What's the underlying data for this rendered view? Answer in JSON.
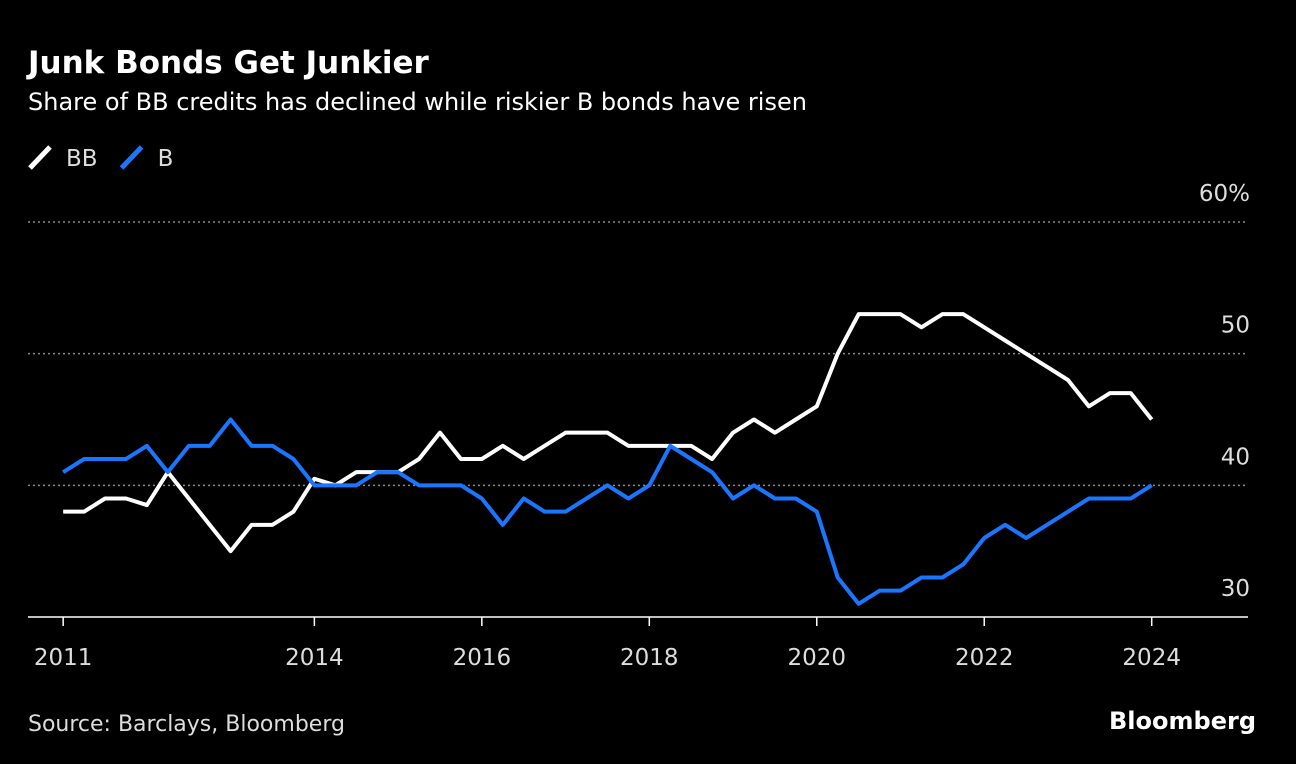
{
  "chart_data": {
    "type": "line",
    "title": "Junk Bonds Get Junkier",
    "subtitle": "Share of BB credits has declined while riskier B bonds have risen",
    "source": "Source: Barclays, Bloomberg",
    "brand": "Bloomberg",
    "x": [
      2011,
      2011.25,
      2011.5,
      2011.75,
      2012,
      2012.25,
      2012.5,
      2012.75,
      2013,
      2013.25,
      2013.5,
      2013.75,
      2014,
      2014.25,
      2014.5,
      2014.75,
      2015,
      2015.25,
      2015.5,
      2015.75,
      2016,
      2016.25,
      2016.5,
      2016.75,
      2017,
      2017.25,
      2017.5,
      2017.75,
      2018,
      2018.25,
      2018.5,
      2018.75,
      2019,
      2019.25,
      2019.5,
      2019.75,
      2020,
      2020.25,
      2020.5,
      2020.75,
      2021,
      2021.25,
      2021.5,
      2021.75,
      2022,
      2022.25,
      2022.5,
      2022.75,
      2023,
      2023.25,
      2023.5,
      2023.75,
      2024
    ],
    "series": [
      {
        "name": "BB",
        "color": "#ffffff",
        "values": [
          38,
          38,
          39,
          39,
          38.5,
          41,
          39,
          37,
          35,
          37,
          37,
          38,
          40.5,
          40,
          41,
          41,
          41,
          42,
          44,
          42,
          42,
          43,
          42,
          43,
          44,
          44,
          44,
          43,
          43,
          43,
          43,
          42,
          44,
          45,
          44,
          45,
          46,
          50,
          53,
          53,
          53,
          52,
          53,
          53,
          52,
          51,
          50,
          49,
          48,
          46,
          47,
          47,
          45
        ]
      },
      {
        "name": "B",
        "color": "#1a75ff",
        "values": [
          41,
          42,
          42,
          42,
          43,
          41,
          43,
          43,
          45,
          43,
          43,
          42,
          40,
          40,
          40,
          41,
          41,
          40,
          40,
          40,
          39,
          37,
          39,
          38,
          38,
          39,
          40,
          39,
          40,
          43,
          42,
          41,
          39,
          40,
          39,
          39,
          38,
          33,
          31,
          32,
          32,
          33,
          33,
          34,
          36,
          37,
          36,
          37,
          38,
          39,
          39,
          39,
          40
        ]
      }
    ],
    "xlim": [
      2010.58,
      2025.15
    ],
    "xticks": [
      2011,
      2014,
      2016,
      2018,
      2020,
      2022,
      2024
    ],
    "ylim": [
      30,
      60
    ],
    "yticks": [
      30,
      40,
      50,
      {
        "value": 60,
        "label": "60%"
      }
    ],
    "grid": true
  }
}
